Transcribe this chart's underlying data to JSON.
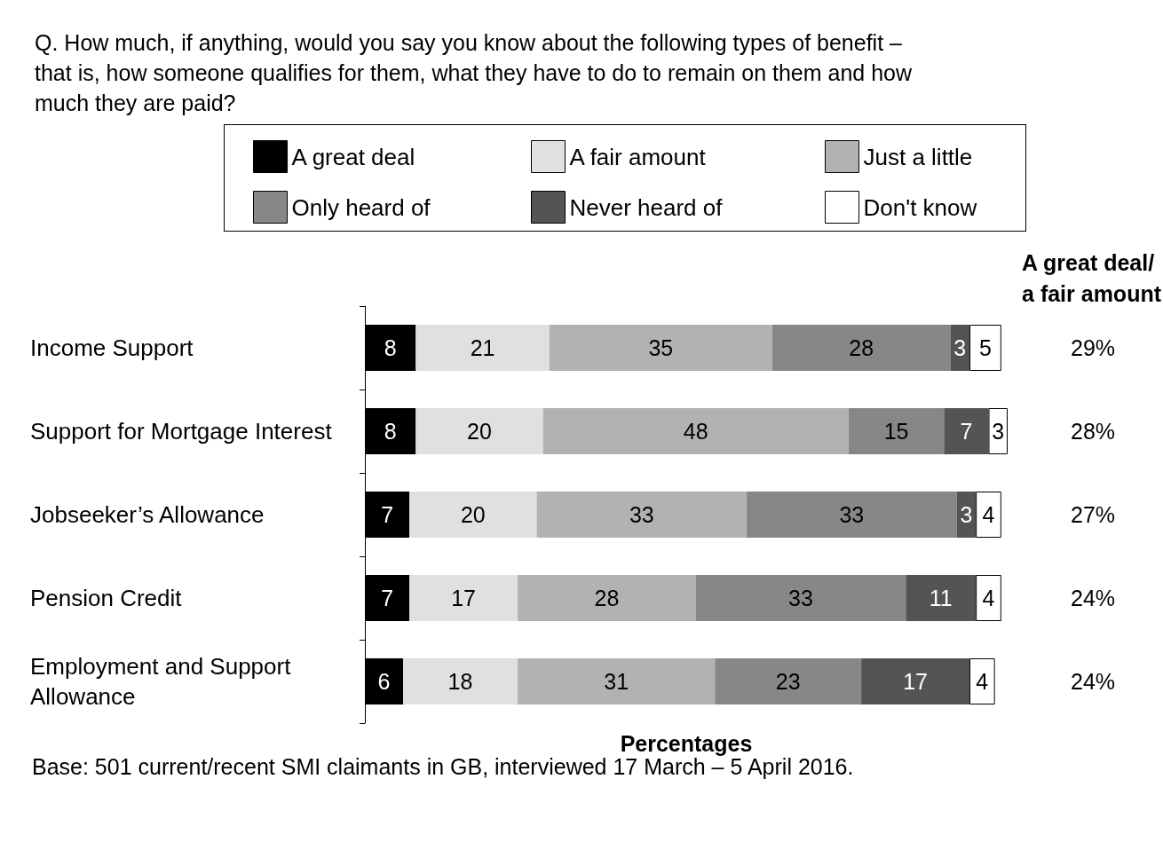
{
  "chart_data": {
    "type": "bar",
    "orientation": "horizontal",
    "stacked": true,
    "data_labels": true,
    "legend": "top",
    "tick_labels": "y",
    "title": "Q. How much, if anything, would you say you know about the following types of benefit – that is, how someone qualifies for them, what they have to do to remain on them and how much they are paid?",
    "xlabel": "Percentages",
    "categories": [
      "Income Support",
      "Support for Mortgage Interest",
      "Jobseeker’s Allowance",
      "Pension Credit",
      "Employment and Support Allowance"
    ],
    "series": [
      {
        "name": "A great deal",
        "color": "#000000",
        "values": [
          8,
          8,
          7,
          7,
          6
        ]
      },
      {
        "name": "A fair amount",
        "color": "#e0e0e0",
        "values": [
          21,
          20,
          20,
          17,
          18
        ]
      },
      {
        "name": "Just a little",
        "color": "#b2b2b2",
        "values": [
          35,
          48,
          33,
          28,
          31
        ]
      },
      {
        "name": "Only heard of",
        "color": "#878787",
        "values": [
          28,
          15,
          33,
          33,
          23
        ]
      },
      {
        "name": "Never heard of",
        "color": "#545454",
        "values": [
          3,
          7,
          3,
          11,
          17
        ]
      },
      {
        "name": "Don't know",
        "color": "#ffffff",
        "values": [
          5,
          3,
          4,
          4,
          4
        ]
      }
    ],
    "annotations": [
      "A great deal/\na fair amount",
      "Base: 501 current/recent SMI claimants in GB, interviewed 17 March – 5 April 2016.",
      "29%",
      "28%",
      "27%",
      "24%",
      "24%"
    ]
  }
}
